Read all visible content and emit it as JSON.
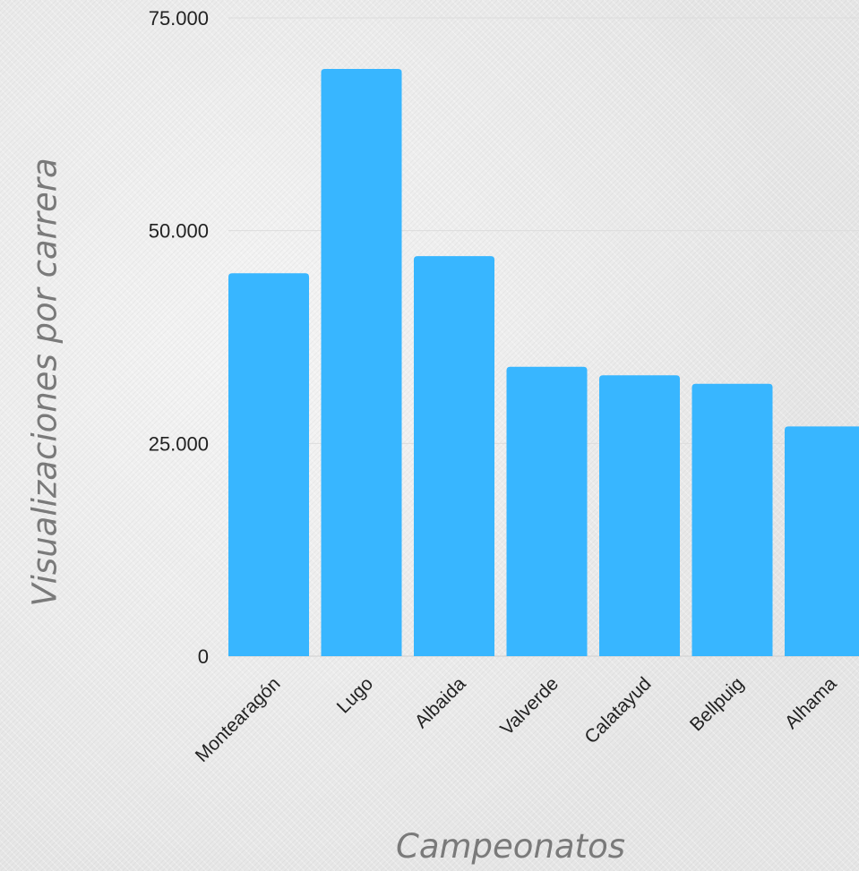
{
  "chart_data": {
    "type": "bar",
    "title": "",
    "xlabel": "Campeonatos",
    "ylabel": "Visualizaciones por carrera",
    "categories": [
      "Montearagón",
      "Lugo",
      "Albaida",
      "Valverde",
      "Calatayud",
      "Bellpuig",
      "Alhama"
    ],
    "values": [
      45000,
      69000,
      47000,
      34000,
      33000,
      32000,
      27000
    ],
    "ylim": [
      0,
      75000
    ],
    "yticks": [
      0,
      25000,
      50000,
      75000
    ],
    "ytick_labels": [
      "0",
      "25.000",
      "50.000",
      "75.000"
    ],
    "grid": true,
    "legend": "none",
    "colors": {
      "bar": "#38b6ff",
      "grid": "#dcdcdc",
      "axis_title": "#7a7a7a",
      "tick": "#222222"
    }
  }
}
